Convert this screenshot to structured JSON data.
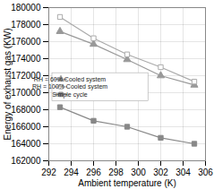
{
  "chart_data": {
    "type": "line",
    "xlabel": "Ambient temperature (K)",
    "ylabel": "Energy of exhaust gas (KW)",
    "x": [
      293,
      296,
      299,
      302,
      305
    ],
    "series": [
      {
        "name": "RH = 60% Cooled system",
        "color": "#999999",
        "marker": "triangle",
        "line_style": "solid",
        "values": [
          177200,
          175700,
          173900,
          172000,
          170900
        ]
      },
      {
        "name": "RH = 100% Cooled system",
        "color": "#aaaaaa",
        "marker": "square-open",
        "line_style": "solid",
        "values": [
          178900,
          176400,
          174500,
          173000,
          171300
        ]
      },
      {
        "name": "Simple cycle",
        "color": "#888888",
        "marker": "square",
        "line_style": "solid",
        "values": [
          168300,
          166700,
          166000,
          164700,
          164000
        ]
      }
    ],
    "xlim": [
      292,
      306
    ],
    "ylim": [
      162000,
      180000
    ],
    "xticks": [
      292,
      294,
      296,
      298,
      300,
      302,
      304,
      306
    ],
    "yticks": [
      162000,
      164000,
      166000,
      168000,
      170000,
      172000,
      174000,
      176000,
      178000,
      180000
    ],
    "grid": true,
    "legend": "left"
  }
}
